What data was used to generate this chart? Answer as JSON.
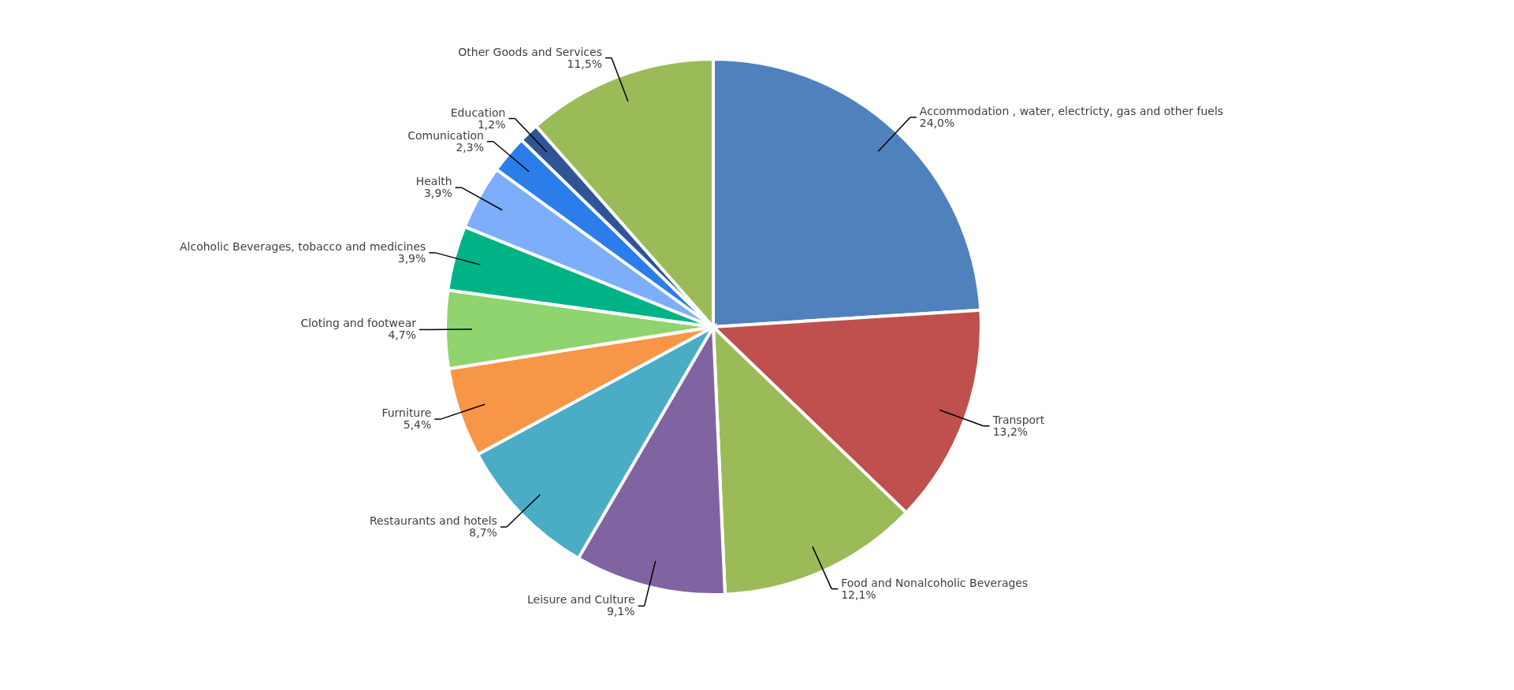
{
  "chart_data": {
    "type": "pie",
    "categories": [
      "Accommodation , water, electricty, gas and other fuels",
      "Transport",
      "Food and Nonalcoholic Beverages",
      "Leisure and Culture",
      "Restaurants and hotels",
      "Furniture",
      "Cloting and footwear",
      "Alcoholic Beverages, tobacco and medicines",
      "Health",
      "Comunication",
      "Education",
      "Other Goods and Services"
    ],
    "values": [
      24.0,
      13.2,
      12.1,
      9.1,
      8.7,
      5.4,
      4.7,
      3.9,
      3.9,
      2.3,
      1.2,
      11.5
    ],
    "value_labels": [
      "24,0%",
      "13,2%",
      "12,1%",
      "9,1%",
      "8,7%",
      "5,4%",
      "4,7%",
      "3,9%",
      "3,9%",
      "2,3%",
      "1,2%",
      "11,5%"
    ],
    "colors": [
      "#4f81bd",
      "#c0504d",
      "#9bbb59",
      "#8064a2",
      "#4bacc6",
      "#f79646",
      "#8fd46e",
      "#00b386",
      "#7daefc",
      "#2b7de9",
      "#2f5597",
      "#9bbb59"
    ],
    "legend": false
  }
}
